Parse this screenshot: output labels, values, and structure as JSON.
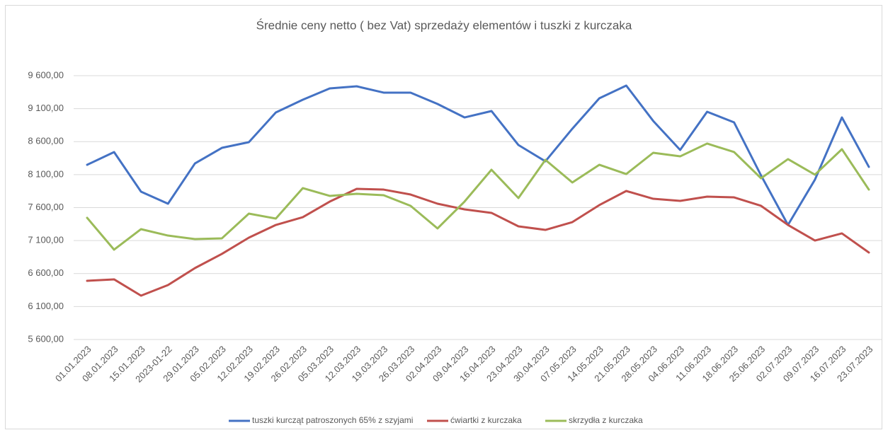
{
  "chart_data": {
    "type": "line",
    "title": "Średnie ceny netto ( bez Vat) sprzedaży elementów i tuszki z kurczaka",
    "categories": [
      "01.01.2023",
      "08.01.2023",
      "15.01.2023",
      "2023-01-22",
      "29.01.2023",
      "05.02.2023",
      "12.02.2023",
      "19.02.2023",
      "26.02.2023",
      "05.03.2023",
      "12.03.2023",
      "19.03.2023",
      "26.03.2023",
      "02.04.2023",
      "09.04.2023",
      "16.04.2023",
      "23.04.2023",
      "30.04.2023",
      "07.05.2023",
      "14.05.2023",
      "21.05.2023",
      "28.05.2023",
      "04.06.2023",
      "11.06.2023",
      "18.06.2023",
      "25.06.2023",
      "02.07.2023",
      "09.07.2023",
      "16.07.2023",
      "23.07.2023"
    ],
    "series": [
      {
        "name": "tuszki kurcząt patroszonych 65% z szyjami",
        "color": "#4472c4",
        "values": [
          8249,
          8442,
          7841,
          7659,
          8270,
          8506,
          8592,
          9042,
          9235,
          9407,
          9439,
          9343,
          9343,
          9171,
          8967,
          9064,
          8549,
          8302,
          8796,
          9257,
          9450,
          8914,
          8474,
          9053,
          8892,
          8088,
          7337,
          8024,
          8967,
          8217
        ]
      },
      {
        "name": "ćwiartki z kurczaka",
        "color": "#c0504d",
        "values": [
          6490,
          6512,
          6265,
          6426,
          6683,
          6898,
          7144,
          7337,
          7455,
          7691,
          7884,
          7873,
          7798,
          7659,
          7573,
          7520,
          7316,
          7262,
          7380,
          7638,
          7852,
          7734,
          7702,
          7766,
          7755,
          7627,
          7337,
          7101,
          7209,
          6919
        ]
      },
      {
        "name": "skrzydła z kurczaka",
        "color": "#9bbb59",
        "values": [
          7445,
          6962,
          7273,
          7176,
          7123,
          7134,
          7509,
          7434,
          7895,
          7777,
          7809,
          7788,
          7627,
          7284,
          7691,
          8174,
          7745,
          8324,
          7981,
          8249,
          8109,
          8431,
          8377,
          8571,
          8442,
          8045,
          8335,
          8099,
          8485,
          7873
        ]
      }
    ],
    "ylim": [
      5600,
      9600
    ],
    "yticks": [
      {
        "value": 5600,
        "label": "5 600,00"
      },
      {
        "value": 6100,
        "label": "6 100,00"
      },
      {
        "value": 6600,
        "label": "6 600,00"
      },
      {
        "value": 7100,
        "label": "7 100,00"
      },
      {
        "value": 7600,
        "label": "7 600,00"
      },
      {
        "value": 8100,
        "label": "8 100,00"
      },
      {
        "value": 8600,
        "label": "8 600,00"
      },
      {
        "value": 9100,
        "label": "9 100,00"
      },
      {
        "value": 9600,
        "label": "9 600,00"
      }
    ],
    "grid": true,
    "legend": "bottom"
  }
}
